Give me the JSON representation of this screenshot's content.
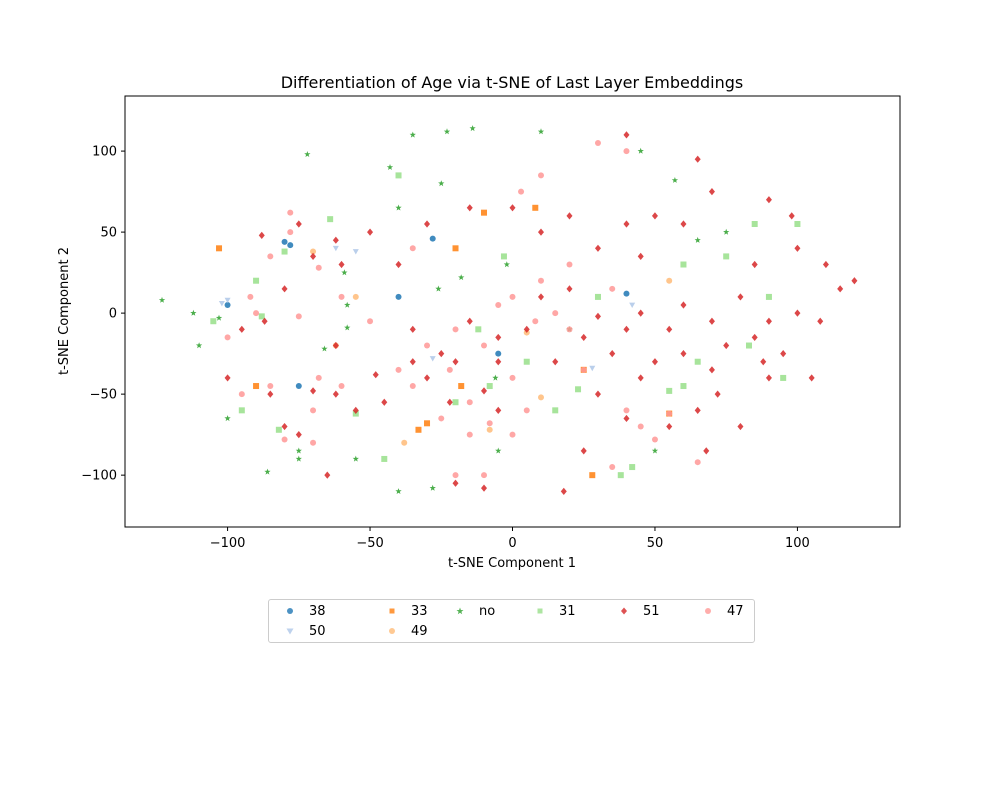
{
  "chart_data": {
    "type": "scatter",
    "title": "Differentiation of Age via t-SNE of Last Layer Embeddings",
    "xlabel": "t-SNE Component 1",
    "ylabel": "t-SNE Component 2",
    "xlim": [
      -136,
      136
    ],
    "ylim": [
      -132,
      134
    ],
    "xticks": [
      -100,
      -50,
      0,
      50,
      100
    ],
    "yticks": [
      -100,
      -50,
      0,
      50,
      100
    ],
    "grid": false,
    "legend_position": "bottom-center",
    "series": [
      {
        "name": "38",
        "color": "#1f77b4",
        "marker": "circle",
        "points": [
          [
            -78,
            42
          ],
          [
            -80,
            44
          ],
          [
            -40,
            10
          ],
          [
            -28,
            46
          ],
          [
            -75,
            -45
          ],
          [
            -100,
            5
          ],
          [
            40,
            12
          ],
          [
            -5,
            -25
          ]
        ]
      },
      {
        "name": "50",
        "color": "#aec7e8",
        "marker": "triangle-down",
        "points": [
          [
            -100,
            8
          ],
          [
            -28,
            -28
          ],
          [
            -55,
            38
          ],
          [
            42,
            5
          ],
          [
            -102,
            6
          ],
          [
            28,
            -34
          ],
          [
            -62,
            40
          ]
        ]
      },
      {
        "name": "33",
        "color": "#ff7f0e",
        "marker": "square",
        "points": [
          [
            -103,
            40
          ],
          [
            -33,
            -72
          ],
          [
            -10,
            62
          ],
          [
            8,
            65
          ],
          [
            55,
            -62
          ],
          [
            -20,
            40
          ],
          [
            -18,
            -45
          ],
          [
            -90,
            -45
          ],
          [
            25,
            -35
          ],
          [
            -30,
            -68
          ],
          [
            28,
            -100
          ]
        ]
      },
      {
        "name": "49",
        "color": "#ffbb78",
        "marker": "circle",
        "points": [
          [
            -70,
            38
          ],
          [
            5,
            -12
          ],
          [
            -55,
            10
          ],
          [
            10,
            -52
          ],
          [
            -38,
            -80
          ],
          [
            55,
            20
          ],
          [
            -8,
            -72
          ],
          [
            -62,
            -20
          ]
        ]
      },
      {
        "name": "no",
        "color": "#2ca02c",
        "marker": "star",
        "points": [
          [
            -35,
            110
          ],
          [
            -23,
            112
          ],
          [
            -14,
            114
          ],
          [
            -72,
            98
          ],
          [
            -25,
            80
          ],
          [
            -40,
            65
          ],
          [
            -43,
            90
          ],
          [
            -123,
            8
          ],
          [
            -103,
            -3
          ],
          [
            -110,
            -20
          ],
          [
            -86,
            -98
          ],
          [
            -75,
            -90
          ],
          [
            -59,
            25
          ],
          [
            -58,
            -9
          ],
          [
            -66,
            -22
          ],
          [
            -40,
            -110
          ],
          [
            -28,
            -108
          ],
          [
            -18,
            22
          ],
          [
            -26,
            15
          ],
          [
            -6,
            -40
          ],
          [
            20,
            -10
          ],
          [
            10,
            112
          ],
          [
            -75,
            -85
          ],
          [
            -58,
            5
          ],
          [
            -2,
            30
          ],
          [
            -100,
            -65
          ],
          [
            -5,
            -85
          ],
          [
            -55,
            -90
          ],
          [
            50,
            -85
          ],
          [
            57,
            82
          ],
          [
            75,
            50
          ],
          [
            65,
            45
          ],
          [
            45,
            100
          ],
          [
            -112,
            0
          ]
        ]
      },
      {
        "name": "31",
        "color": "#98df8a",
        "marker": "square",
        "points": [
          [
            -80,
            38
          ],
          [
            -90,
            20
          ],
          [
            -88,
            -2
          ],
          [
            -64,
            58
          ],
          [
            -55,
            -62
          ],
          [
            -82,
            -72
          ],
          [
            -3,
            35
          ],
          [
            -20,
            -55
          ],
          [
            15,
            -60
          ],
          [
            23,
            -47
          ],
          [
            42,
            -95
          ],
          [
            38,
            -100
          ],
          [
            60,
            -45
          ],
          [
            60,
            30
          ],
          [
            75,
            35
          ],
          [
            100,
            55
          ],
          [
            -45,
            -90
          ],
          [
            -95,
            -60
          ],
          [
            55,
            -48
          ],
          [
            30,
            10
          ],
          [
            -8,
            -45
          ],
          [
            -105,
            -5
          ],
          [
            5,
            -30
          ],
          [
            83,
            -20
          ],
          [
            95,
            -40
          ],
          [
            65,
            -30
          ],
          [
            85,
            55
          ],
          [
            90,
            10
          ],
          [
            -40,
            85
          ],
          [
            -12,
            -10
          ]
        ]
      },
      {
        "name": "51",
        "color": "#d62728",
        "marker": "diamond",
        "points": [
          [
            -75,
            55
          ],
          [
            -70,
            35
          ],
          [
            -88,
            48
          ],
          [
            -62,
            45
          ],
          [
            -87,
            -5
          ],
          [
            -95,
            -10
          ],
          [
            -85,
            -50
          ],
          [
            -70,
            -48
          ],
          [
            -80,
            -70
          ],
          [
            -62,
            -20
          ],
          [
            -48,
            -38
          ],
          [
            -35,
            -30
          ],
          [
            -25,
            -25
          ],
          [
            -22,
            -55
          ],
          [
            -10,
            -48
          ],
          [
            -5,
            -60
          ],
          [
            -10,
            -108
          ],
          [
            -20,
            -105
          ],
          [
            -55,
            -60
          ],
          [
            -45,
            -55
          ],
          [
            10,
            10
          ],
          [
            20,
            15
          ],
          [
            25,
            -15
          ],
          [
            15,
            -30
          ],
          [
            35,
            -25
          ],
          [
            40,
            -10
          ],
          [
            45,
            0
          ],
          [
            30,
            40
          ],
          [
            45,
            35
          ],
          [
            20,
            60
          ],
          [
            10,
            50
          ],
          [
            55,
            -10
          ],
          [
            60,
            5
          ],
          [
            70,
            -5
          ],
          [
            80,
            10
          ],
          [
            65,
            -60
          ],
          [
            72,
            -50
          ],
          [
            40,
            -65
          ],
          [
            55,
            -70
          ],
          [
            68,
            -85
          ],
          [
            85,
            -15
          ],
          [
            95,
            -25
          ],
          [
            88,
            -30
          ],
          [
            100,
            0
          ],
          [
            90,
            -40
          ],
          [
            105,
            -40
          ],
          [
            60,
            55
          ],
          [
            70,
            75
          ],
          [
            90,
            70
          ],
          [
            98,
            60
          ],
          [
            65,
            95
          ],
          [
            40,
            110
          ],
          [
            -35,
            -10
          ],
          [
            -15,
            -5
          ],
          [
            -5,
            -15
          ],
          [
            25,
            -85
          ],
          [
            18,
            -110
          ],
          [
            -40,
            30
          ],
          [
            -50,
            50
          ],
          [
            -100,
            -40
          ],
          [
            -65,
            -100
          ],
          [
            80,
            -70
          ],
          [
            -5,
            -30
          ],
          [
            30,
            -50
          ],
          [
            70,
            -35
          ],
          [
            50,
            -30
          ],
          [
            85,
            30
          ],
          [
            110,
            30
          ],
          [
            115,
            15
          ],
          [
            108,
            -5
          ],
          [
            120,
            20
          ],
          [
            -30,
            55
          ],
          [
            -15,
            65
          ],
          [
            0,
            65
          ],
          [
            -62,
            -50
          ],
          [
            -75,
            -75
          ],
          [
            -20,
            -30
          ],
          [
            -30,
            -40
          ],
          [
            5,
            -10
          ],
          [
            50,
            60
          ],
          [
            40,
            55
          ],
          [
            75,
            -20
          ],
          [
            90,
            -5
          ],
          [
            -80,
            15
          ],
          [
            -60,
            30
          ],
          [
            30,
            -2
          ],
          [
            45,
            -40
          ],
          [
            100,
            40
          ],
          [
            60,
            -25
          ]
        ]
      },
      {
        "name": "47",
        "color": "#ff9896",
        "marker": "circle",
        "points": [
          [
            -78,
            50
          ],
          [
            -68,
            28
          ],
          [
            -85,
            35
          ],
          [
            -78,
            62
          ],
          [
            -92,
            10
          ],
          [
            -75,
            -2
          ],
          [
            -100,
            -15
          ],
          [
            -85,
            -45
          ],
          [
            -68,
            -40
          ],
          [
            -80,
            -78
          ],
          [
            -30,
            -20
          ],
          [
            -22,
            -35
          ],
          [
            -10,
            -20
          ],
          [
            -35,
            -45
          ],
          [
            -25,
            -65
          ],
          [
            -15,
            -55
          ],
          [
            0,
            -40
          ],
          [
            -8,
            -68
          ],
          [
            -15,
            -75
          ],
          [
            5,
            -60
          ],
          [
            0,
            10
          ],
          [
            10,
            20
          ],
          [
            15,
            0
          ],
          [
            20,
            -10
          ],
          [
            8,
            -5
          ],
          [
            3,
            75
          ],
          [
            10,
            85
          ],
          [
            30,
            105
          ],
          [
            40,
            100
          ],
          [
            35,
            15
          ],
          [
            25,
            -35
          ],
          [
            45,
            -70
          ],
          [
            40,
            -60
          ],
          [
            55,
            -62
          ],
          [
            50,
            -78
          ],
          [
            -40,
            -35
          ],
          [
            -20,
            -10
          ],
          [
            -10,
            -100
          ],
          [
            -20,
            -100
          ],
          [
            -5,
            5
          ],
          [
            20,
            30
          ],
          [
            65,
            -92
          ],
          [
            35,
            -95
          ],
          [
            -60,
            -45
          ],
          [
            -70,
            -80
          ],
          [
            0,
            -75
          ],
          [
            -35,
            40
          ],
          [
            -50,
            -5
          ],
          [
            -60,
            10
          ],
          [
            -95,
            -50
          ],
          [
            -90,
            0
          ],
          [
            -70,
            -60
          ]
        ]
      }
    ]
  }
}
